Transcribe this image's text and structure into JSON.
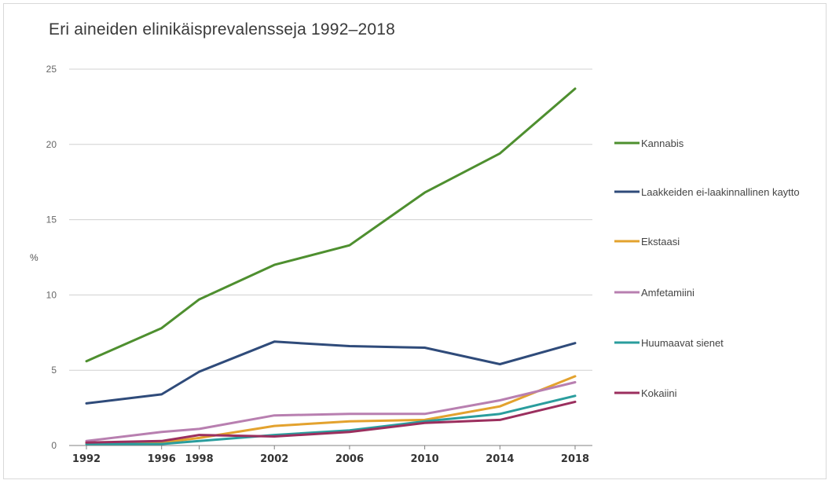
{
  "chart_data": {
    "type": "line",
    "title": "Eri aineiden elinikäisprevalensseja 1992–2018",
    "xlabel": "",
    "ylabel": "%",
    "ylim": [
      0,
      25
    ],
    "yticks": [
      "0",
      "5",
      "10",
      "15",
      "20",
      "25"
    ],
    "x": [
      1992,
      1996,
      1998,
      2002,
      2006,
      2010,
      2014,
      2018
    ],
    "x_labels": [
      "1992",
      "1996",
      "1998",
      "2002",
      "2006",
      "2010",
      "2014",
      "2018"
    ],
    "grid": true,
    "legend_position": "right",
    "series": [
      {
        "name": "Kannabis",
        "color": "#4e8f2f",
        "values": [
          5.6,
          7.8,
          9.7,
          12.0,
          13.3,
          16.8,
          19.4,
          23.7
        ]
      },
      {
        "name": "Laakkeiden ei-laakinnallinen kaytto",
        "color": "#2f4b7a",
        "values": [
          2.8,
          3.4,
          4.9,
          6.9,
          6.6,
          6.5,
          5.4,
          6.8
        ]
      },
      {
        "name": "Ekstaasi",
        "color": "#e3a22e",
        "values": [
          0.2,
          0.2,
          0.5,
          1.3,
          1.6,
          1.7,
          2.6,
          4.6
        ]
      },
      {
        "name": "Amfetamiini",
        "color": "#b87fb0",
        "values": [
          0.3,
          0.9,
          1.1,
          2.0,
          2.1,
          2.1,
          3.0,
          4.2
        ]
      },
      {
        "name": "Huumaavat sienet",
        "color": "#2a9d9d",
        "values": [
          0.1,
          0.1,
          0.3,
          0.7,
          1.0,
          1.6,
          2.1,
          3.3
        ]
      },
      {
        "name": "Kokaiini",
        "color": "#9b2f5e",
        "values": [
          0.2,
          0.3,
          0.7,
          0.6,
          0.9,
          1.5,
          1.7,
          2.9
        ]
      }
    ]
  }
}
